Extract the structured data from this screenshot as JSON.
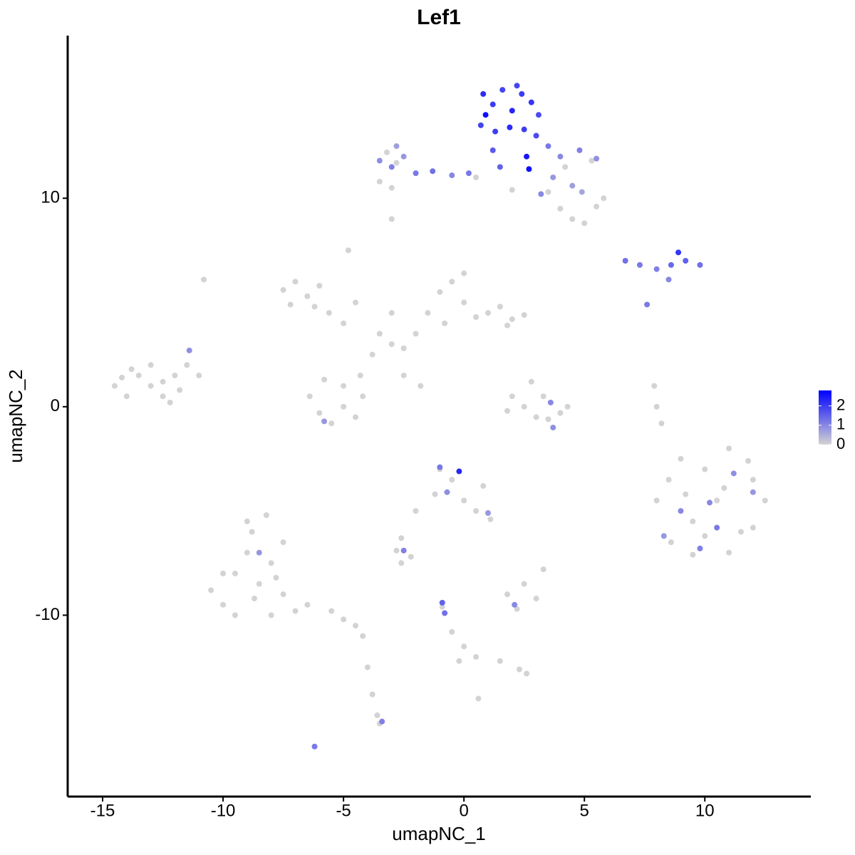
{
  "chart_data": {
    "type": "scatter",
    "title": "Lef1",
    "x_label": "umapNC_1",
    "y_label": "umapNC_2",
    "xlim": [
      -16.45,
      14.4
    ],
    "ylim": [
      -18.7,
      17.8
    ],
    "xticks": [
      -15,
      -10,
      -5,
      0,
      5,
      10
    ],
    "yticks": [
      -10,
      0,
      10
    ],
    "colors": [
      "#d3d3d3",
      "#0000ff"
    ],
    "colorlim": [
      0,
      2.8
    ],
    "colorticks": [
      0,
      1,
      2
    ],
    "x": [
      -14.5,
      -14,
      -13.5,
      -13,
      -12.5,
      -12,
      -13,
      -12.5,
      -11.8,
      -11.5,
      -11,
      -13.8,
      -12.2,
      -14.2,
      -10.5,
      -10,
      -9.5,
      -9,
      -8.8,
      -8.5,
      -8,
      -8,
      -7.5,
      -7,
      -9.5,
      -10,
      -9,
      -8.2,
      -7.5,
      -6.5,
      -5.5,
      -5,
      -4.5,
      -4.2,
      -4,
      -3.8,
      -3.6,
      -3.5,
      -8.7,
      -7.8,
      -7.5,
      -7,
      -6.5,
      -6,
      -7.2,
      -6.2,
      -5.6,
      -5,
      -4.8,
      -4.5,
      -6.4,
      -6,
      -5.5,
      -5,
      -4.5,
      -4.2,
      -5,
      -5.8,
      -4.3,
      -3.8,
      -3.5,
      -3,
      -2.5,
      -2,
      -3,
      -2.5,
      -1.8,
      -1.5,
      -1,
      -0.5,
      0,
      0.5,
      1,
      1.5,
      2,
      2.5,
      -0.8,
      0,
      1.8,
      2,
      2.5,
      3,
      3.5,
      4,
      4.3,
      2.8,
      3.3,
      1.8,
      -10.8,
      -3,
      7.9,
      8,
      8.2,
      8,
      8.5,
      9,
      9.5,
      10,
      10.5,
      11,
      11.5,
      12,
      12.5,
      11,
      9.5,
      8.6,
      10,
      12,
      10.8,
      9.2,
      11.8,
      -1,
      -0.5,
      0,
      0.5,
      -1.2,
      0.8,
      1.1,
      -2,
      -2.6,
      -2.8,
      -2.2,
      -2.6,
      1.8,
      2.5,
      3,
      2.2,
      3.3,
      -0.9,
      -0.5,
      0,
      0.5,
      1.5,
      2.3,
      2.6,
      -0.2,
      0.6,
      4,
      4.5,
      5,
      5.5,
      5.8,
      3.5,
      2,
      0.5,
      -3.5,
      4.2,
      5.3,
      -2.8,
      -3.2,
      -3.0,
      0.8,
      1.2,
      1.6,
      2,
      2.4,
      2.8,
      3.1,
      0.7,
      1.3,
      1.9,
      2.5,
      3,
      1.2,
      1.5,
      2.6,
      2.7,
      0.9,
      2.2,
      -3.5,
      -3,
      -2.5,
      -2,
      -1.3,
      -0.5,
      0.2,
      -2.8,
      3.5,
      4,
      4.8,
      5.5,
      3.7,
      4.5,
      3.2,
      4.9,
      6.7,
      7.3,
      8,
      8.6,
      9.2,
      9.8,
      8.9,
      8.5,
      7.6,
      9,
      10.5,
      11.2,
      9.8,
      8.3,
      12,
      10.2,
      -0.2,
      -1,
      -0.7,
      1,
      -2.5,
      -0.9,
      -0.8,
      2.1,
      -6.2,
      -8.5,
      -5.8,
      -3.4,
      3.6,
      3.7,
      -11.4
    ],
    "y": [
      1.0,
      0.5,
      1.5,
      1.0,
      0.5,
      1.5,
      2.0,
      1.2,
      0.8,
      2.0,
      1.5,
      1.8,
      0.2,
      1.4,
      -8.8,
      -9.5,
      -8,
      -7,
      -6,
      -8.5,
      -10,
      -7.5,
      -9,
      -9.8,
      -10,
      -8,
      -5.5,
      -5.2,
      -6.5,
      -9.5,
      -9.8,
      -10.2,
      -10.5,
      -11,
      -12.5,
      -13.8,
      -14.8,
      -15.2,
      -9.2,
      -8.2,
      5.6,
      6,
      5.3,
      5.8,
      4.9,
      4.8,
      4.5,
      4,
      7.5,
      5,
      0.5,
      -0.3,
      -0.8,
      0,
      -0.5,
      0.5,
      1,
      1.3,
      1.5,
      2.5,
      3.5,
      3,
      2.8,
      3.5,
      4.5,
      1.5,
      1,
      4.5,
      5.5,
      6,
      5,
      4.3,
      4.5,
      4.8,
      4.2,
      4.4,
      4,
      6.4,
      3.9,
      0.5,
      0,
      -0.5,
      -0.6,
      -0.3,
      0,
      1.2,
      0.5,
      -0.2,
      6.1,
      9,
      1,
      0,
      -0.8,
      -4.5,
      -3.5,
      -2.5,
      -5.5,
      -3,
      -4.5,
      -2,
      -6,
      -3.5,
      -4.5,
      -7,
      -7.1,
      -6.5,
      -6.2,
      -5.8,
      -3.9,
      -4.2,
      -2.6,
      -3,
      -3.5,
      -4.5,
      -5,
      -4.2,
      -3.8,
      -5.4,
      -5,
      -6.3,
      -6.9,
      -7.2,
      -7.5,
      -9,
      -8.5,
      -9.2,
      -9.7,
      -7.8,
      -9.6,
      -10.8,
      -11.5,
      -12,
      -12.2,
      -12.6,
      -12.8,
      -12.2,
      -14,
      9.5,
      9,
      8.8,
      9.6,
      10,
      10.3,
      10.4,
      11,
      10.8,
      11.5,
      11.8,
      11.7,
      12.2,
      10.5,
      15,
      14.5,
      15.2,
      14.2,
      15,
      14.6,
      14,
      13.5,
      13.2,
      13.4,
      13.3,
      13,
      12.3,
      11.5,
      12,
      11.4,
      14,
      15.4,
      11.8,
      11.5,
      12,
      11.2,
      11.3,
      11.1,
      11.2,
      12.5,
      12.5,
      12,
      12.3,
      11.9,
      11,
      10.6,
      10.2,
      10.3,
      7,
      6.8,
      6.6,
      6.8,
      7,
      6.8,
      7.4,
      6.1,
      4.9,
      -5,
      -5.8,
      -3.2,
      -6.8,
      -6.2,
      -4.1,
      -4.6,
      -3.1,
      -2.9,
      -4.1,
      -5.1,
      -6.9,
      -9.4,
      -9.9,
      -9.5,
      -16.3,
      -7,
      -0.7,
      -15.1,
      0.2,
      -1,
      2.7
    ],
    "values": [
      0,
      0,
      0,
      0,
      0,
      0,
      0,
      0,
      0,
      0,
      0,
      0,
      0,
      0,
      0,
      0,
      0,
      0,
      0,
      0,
      0,
      0,
      0,
      0,
      0,
      0,
      0,
      0,
      0,
      0,
      0,
      0,
      0,
      0,
      0,
      0,
      0,
      0,
      0,
      0,
      0,
      0,
      0,
      0,
      0,
      0,
      0,
      0,
      0,
      0,
      0,
      0,
      0,
      0,
      0,
      0,
      0,
      0,
      0,
      0,
      0,
      0,
      0,
      0,
      0,
      0,
      0,
      0,
      0,
      0,
      0,
      0,
      0,
      0,
      0,
      0,
      0,
      0,
      0,
      0,
      0,
      0,
      0,
      0,
      0,
      0,
      0,
      0,
      0,
      0,
      0,
      0,
      0,
      0,
      0,
      0,
      0,
      0,
      0,
      0,
      0,
      0,
      0,
      0,
      0,
      0,
      0,
      0,
      0,
      0,
      0,
      0,
      0,
      0,
      0,
      0,
      0,
      0,
      0,
      0,
      0,
      0,
      0,
      0,
      0,
      0,
      0,
      0,
      0,
      0,
      0,
      0,
      0,
      0,
      0,
      0,
      0,
      0,
      0,
      0,
      0,
      0,
      0,
      0,
      0,
      0,
      0,
      0,
      0,
      0,
      0,
      2.2,
      2,
      1.9,
      2.3,
      2,
      2.1,
      1.8,
      1.9,
      2,
      2.2,
      2,
      1.8,
      1.6,
      1.5,
      2.5,
      2.6,
      2.6,
      1.9,
      0.9,
      1.1,
      0.8,
      1.2,
      1.3,
      1,
      1.2,
      0.7,
      1.2,
      1,
      1.1,
      0.9,
      0.8,
      0.7,
      1,
      0.6,
      1.3,
      1.2,
      1.1,
      1.4,
      1.5,
      1.3,
      2.1,
      1,
      1.2,
      1,
      1.2,
      0.9,
      1.1,
      0.8,
      0.8,
      1,
      2.3,
      1.2,
      0.9,
      0.8,
      1.1,
      1.5,
      1.3,
      1,
      1.2,
      0.8,
      0.8,
      1.1,
      1,
      0.9,
      0.9
    ]
  }
}
